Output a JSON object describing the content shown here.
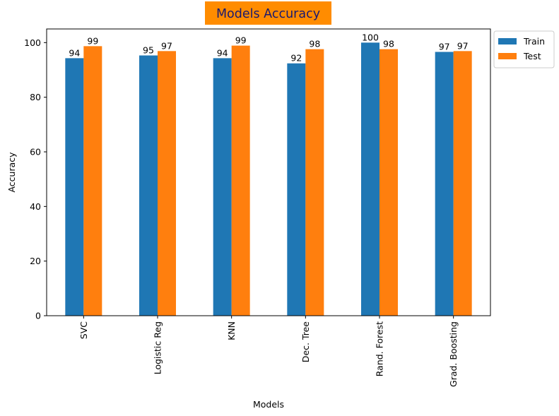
{
  "chart_data": {
    "type": "bar",
    "title": "Models Accuracy",
    "title_bg_color": "#ff8c00",
    "title_color": "#191970",
    "xlabel": "Models",
    "ylabel": "Accuracy",
    "ylim": [
      0,
      105
    ],
    "yticks": [
      0,
      20,
      40,
      60,
      80,
      100
    ],
    "grid": false,
    "legend_position": "outside-top-right",
    "categories": [
      "SVC",
      "Logistic Reg",
      "KNN",
      "Dec. Tree",
      "Rand. Forest",
      "Grad. Boosting"
    ],
    "series": [
      {
        "name": "Train",
        "color": "#1f77b4",
        "values": [
          94.3,
          95.3,
          94.3,
          92.4,
          100,
          96.6
        ],
        "labels": [
          "94",
          "95",
          "94",
          "92",
          "100",
          "97"
        ]
      },
      {
        "name": "Test",
        "color": "#ff7f0e",
        "values": [
          98.7,
          96.9,
          98.9,
          97.6,
          97.6,
          96.9
        ],
        "labels": [
          "99",
          "97",
          "99",
          "98",
          "98",
          "97"
        ]
      }
    ]
  }
}
